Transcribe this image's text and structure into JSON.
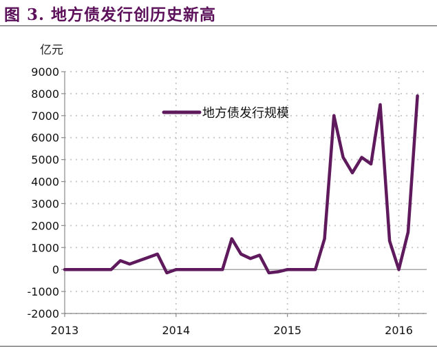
{
  "figure": {
    "title": "图 3.   地方债发行创历史新高"
  },
  "chart_data": {
    "type": "line",
    "unit_label": "亿元",
    "title": "",
    "xlabel": "",
    "ylabel": "亿元",
    "ylim": [
      -2000,
      9000
    ],
    "yticks": [
      -2000,
      -1000,
      0,
      1000,
      2000,
      3000,
      4000,
      5000,
      6000,
      7000,
      8000,
      9000
    ],
    "xlim": [
      2013.0,
      2016.25
    ],
    "xticks": [
      "2013",
      "2014",
      "2015",
      "2016"
    ],
    "grid": true,
    "legend": {
      "position": "top-center",
      "entries": [
        "地方债发行规模"
      ]
    },
    "colors": {
      "series": "#5e1a5c"
    },
    "series": [
      {
        "name": "地方债发行规模",
        "x": [
          2013.0,
          2013.083,
          2013.167,
          2013.25,
          2013.333,
          2013.417,
          2013.5,
          2013.583,
          2013.667,
          2013.75,
          2013.833,
          2013.917,
          2014.0,
          2014.083,
          2014.167,
          2014.25,
          2014.333,
          2014.417,
          2014.5,
          2014.583,
          2014.667,
          2014.75,
          2014.833,
          2014.917,
          2015.0,
          2015.083,
          2015.167,
          2015.25,
          2015.333,
          2015.417,
          2015.5,
          2015.583,
          2015.667,
          2015.75,
          2015.833,
          2015.917,
          2016.0,
          2016.083,
          2016.167
        ],
        "values": [
          0,
          0,
          0,
          0,
          0,
          0,
          400,
          250,
          400,
          550,
          700,
          -150,
          0,
          0,
          0,
          0,
          0,
          0,
          1400,
          700,
          500,
          650,
          -150,
          -100,
          0,
          0,
          0,
          0,
          1400,
          7000,
          5100,
          4400,
          5100,
          4800,
          7500,
          1300,
          0,
          1700,
          7900
        ]
      }
    ]
  }
}
